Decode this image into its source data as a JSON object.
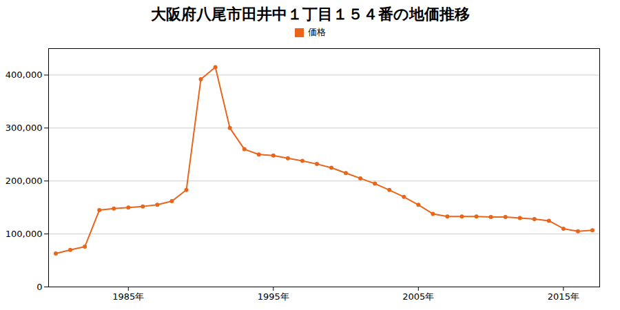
{
  "chart_data": {
    "type": "line",
    "title": "大阪府八尾市田井中１丁目１５４番の地価推移",
    "x": [
      1980,
      1981,
      1982,
      1983,
      1984,
      1985,
      1986,
      1987,
      1988,
      1989,
      1990,
      1991,
      1992,
      1993,
      1994,
      1995,
      1996,
      1997,
      1998,
      1999,
      2000,
      2001,
      2002,
      2003,
      2004,
      2005,
      2006,
      2007,
      2008,
      2009,
      2010,
      2011,
      2012,
      2013,
      2014,
      2015,
      2016,
      2017
    ],
    "series": [
      {
        "name": "価格",
        "color": "#e8651a",
        "marker": "circle",
        "values": [
          63000,
          70000,
          76000,
          145000,
          148000,
          150000,
          152000,
          155000,
          162000,
          183000,
          392000,
          415000,
          300000,
          260000,
          250000,
          248000,
          243000,
          238000,
          232000,
          225000,
          215000,
          205000,
          195000,
          183000,
          170000,
          155000,
          138000,
          133000,
          133000,
          133000,
          132000,
          132000,
          130000,
          128000,
          125000,
          110000,
          105000,
          107000
        ]
      }
    ],
    "xlim": [
      1979.5,
      2017.5
    ],
    "xticks": [
      {
        "value": 1985,
        "label": "1985年"
      },
      {
        "value": 1995,
        "label": "1995年"
      },
      {
        "value": 2005,
        "label": "2005年"
      },
      {
        "value": 2015,
        "label": "2015年"
      }
    ],
    "ylim": [
      0,
      450000
    ],
    "yticks": [
      0,
      {
        "value": 100000,
        "label": "100,000"
      },
      {
        "value": 200000,
        "label": "200,000"
      },
      {
        "value": 300000,
        "label": "300,000"
      },
      {
        "value": 400000,
        "label": "400,000"
      }
    ],
    "grid": true,
    "legend": "top"
  }
}
